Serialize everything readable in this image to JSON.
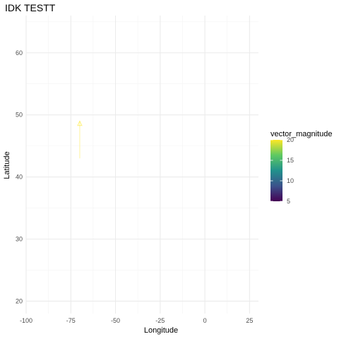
{
  "chart_data": {
    "type": "vector-field",
    "title": "IDK TESTT",
    "xlabel": "Longitude",
    "ylabel": "Latitude",
    "xlim": [
      -100,
      30
    ],
    "ylim": [
      18,
      66
    ],
    "x_ticks": [
      -100,
      -75,
      -50,
      -25,
      0,
      25
    ],
    "x_tick_labels": [
      "-100",
      "-75",
      "-50",
      "-25",
      "0",
      "25"
    ],
    "y_ticks": [
      20,
      30,
      40,
      50,
      60
    ],
    "y_tick_labels": [
      "20",
      "30",
      "40",
      "50",
      "60"
    ],
    "grid": true,
    "vectors": [
      {
        "x": -70,
        "y": 43,
        "xend": -70,
        "yend": 49,
        "vector_magnitude": 20
      }
    ],
    "legend": {
      "title": "vector_magnitude",
      "position": "right",
      "min": 5,
      "max": 20,
      "breaks": [
        5,
        10,
        15,
        20
      ],
      "break_labels": [
        "5",
        "10",
        "15",
        "20"
      ],
      "colormap": [
        "#440154",
        "#3b528b",
        "#21918c",
        "#5ec962",
        "#fde725"
      ]
    },
    "colors": {
      "grid_major": "#ebebeb",
      "grid_minor": "#f4f4f4",
      "tick_text": "#4d4d4d",
      "title_text": "#000000"
    }
  }
}
